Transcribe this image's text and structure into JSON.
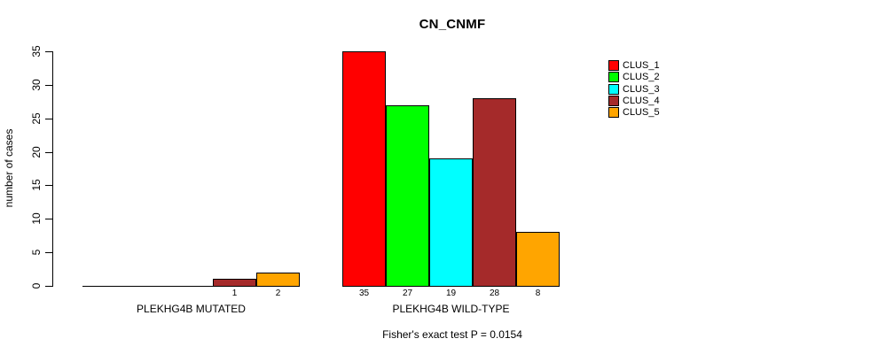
{
  "chart_data": {
    "type": "bar",
    "title": "CN_CNMF",
    "ylabel": "number of cases",
    "xlabel": "",
    "ylim": [
      0,
      35
    ],
    "yticks": [
      0,
      5,
      10,
      15,
      20,
      25,
      30,
      35
    ],
    "grid": false,
    "legend_position": "right",
    "categories": [
      "PLEKHG4B MUTATED",
      "PLEKHG4B WILD-TYPE"
    ],
    "series": [
      {
        "name": "CLUS_1",
        "color": "#FF0000",
        "values": [
          0,
          35
        ]
      },
      {
        "name": "CLUS_2",
        "color": "#00FF00",
        "values": [
          0,
          27
        ]
      },
      {
        "name": "CLUS_3",
        "color": "#00FFFF",
        "values": [
          0,
          19
        ]
      },
      {
        "name": "CLUS_4",
        "color": "#A52A2A",
        "values": [
          1,
          28
        ]
      },
      {
        "name": "CLUS_5",
        "color": "#FFA500",
        "values": [
          2,
          8
        ]
      }
    ],
    "groups": [
      {
        "label": "PLEKHG4B MUTATED",
        "values": [
          0,
          0,
          0,
          1,
          2
        ]
      },
      {
        "label": "PLEKHG4B WILD-TYPE",
        "values": [
          35,
          27,
          19,
          28,
          8
        ]
      }
    ],
    "bar_value_labels": {
      "mutated": [
        "1",
        "2"
      ],
      "wild_type": [
        "35",
        "27",
        "19",
        "28",
        "8"
      ]
    },
    "annotation": "Fisher's exact test P = 0.0154"
  },
  "colors": {
    "axis": "#000000",
    "text": "#000000",
    "background": "#FFFFFF"
  }
}
